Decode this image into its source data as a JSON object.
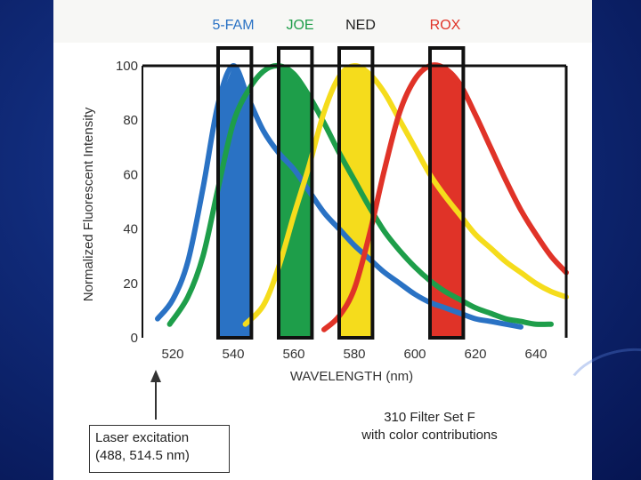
{
  "chart_data": {
    "type": "line",
    "title": "",
    "xlabel": "WAVELENGTH (nm)",
    "ylabel": "Normalized Fluorescent Intensity",
    "xlim": [
      510,
      650
    ],
    "ylim": [
      0,
      100
    ],
    "x_ticks": [
      "520",
      "540",
      "560",
      "580",
      "600",
      "620",
      "640"
    ],
    "x_tick_values": [
      520,
      540,
      560,
      580,
      600,
      620,
      640
    ],
    "y_ticks": [
      "0",
      "20",
      "40",
      "60",
      "80",
      "100"
    ],
    "y_tick_values": [
      0,
      20,
      40,
      60,
      80,
      100
    ],
    "grid": false,
    "series": [
      {
        "name": "5-FAM",
        "color": "#2a72c4",
        "x": [
          515,
          520,
          525,
          530,
          535,
          540,
          545,
          550,
          555,
          560,
          565,
          570,
          575,
          580,
          585,
          590,
          595,
          600,
          605,
          610,
          615,
          620,
          625,
          630,
          635
        ],
        "values": [
          7,
          14,
          28,
          55,
          86,
          100,
          88,
          76,
          68,
          62,
          54,
          46,
          40,
          34,
          29,
          24,
          20,
          16,
          13,
          11,
          9,
          7,
          6,
          5,
          4
        ]
      },
      {
        "name": "JOE",
        "color": "#1e9e4a",
        "x": [
          519,
          525,
          530,
          535,
          540,
          545,
          550,
          555,
          560,
          565,
          570,
          575,
          580,
          585,
          590,
          595,
          600,
          605,
          610,
          615,
          620,
          625,
          630,
          635,
          640,
          645
        ],
        "values": [
          5,
          15,
          30,
          55,
          79,
          91,
          98,
          100,
          97,
          89,
          79,
          68,
          58,
          48,
          39,
          32,
          26,
          21,
          17,
          14,
          11,
          9,
          7,
          6,
          5,
          5
        ]
      },
      {
        "name": "NED",
        "color": "#f5dc1c",
        "x": [
          544,
          550,
          555,
          560,
          565,
          570,
          575,
          580,
          585,
          590,
          595,
          600,
          605,
          610,
          615,
          620,
          625,
          630,
          635,
          640,
          645,
          650
        ],
        "values": [
          5,
          12,
          26,
          45,
          63,
          83,
          96,
          100,
          97,
          90,
          80,
          70,
          60,
          52,
          45,
          38,
          33,
          28,
          24,
          20,
          17,
          15
        ]
      },
      {
        "name": "ROX",
        "color": "#e03328",
        "x": [
          570,
          575,
          580,
          585,
          590,
          595,
          600,
          605,
          610,
          615,
          620,
          625,
          630,
          635,
          640,
          645,
          650
        ],
        "values": [
          3,
          8,
          18,
          38,
          62,
          83,
          95,
          100,
          99,
          93,
          82,
          70,
          58,
          47,
          38,
          30,
          24
        ]
      }
    ],
    "filter_bands": [
      {
        "name": "5-FAM",
        "range": [
          535,
          546
        ]
      },
      {
        "name": "JOE",
        "range": [
          555,
          566
        ]
      },
      {
        "name": "NED",
        "range": [
          575,
          586
        ]
      },
      {
        "name": "ROX",
        "range": [
          605,
          616
        ]
      }
    ],
    "annotations": {
      "laser_line_1": "Laser excitation",
      "laser_line_2": "(488, 514.5 nm)",
      "filter_line_1": "310 Filter Set F",
      "filter_line_2": "with color contributions"
    }
  }
}
